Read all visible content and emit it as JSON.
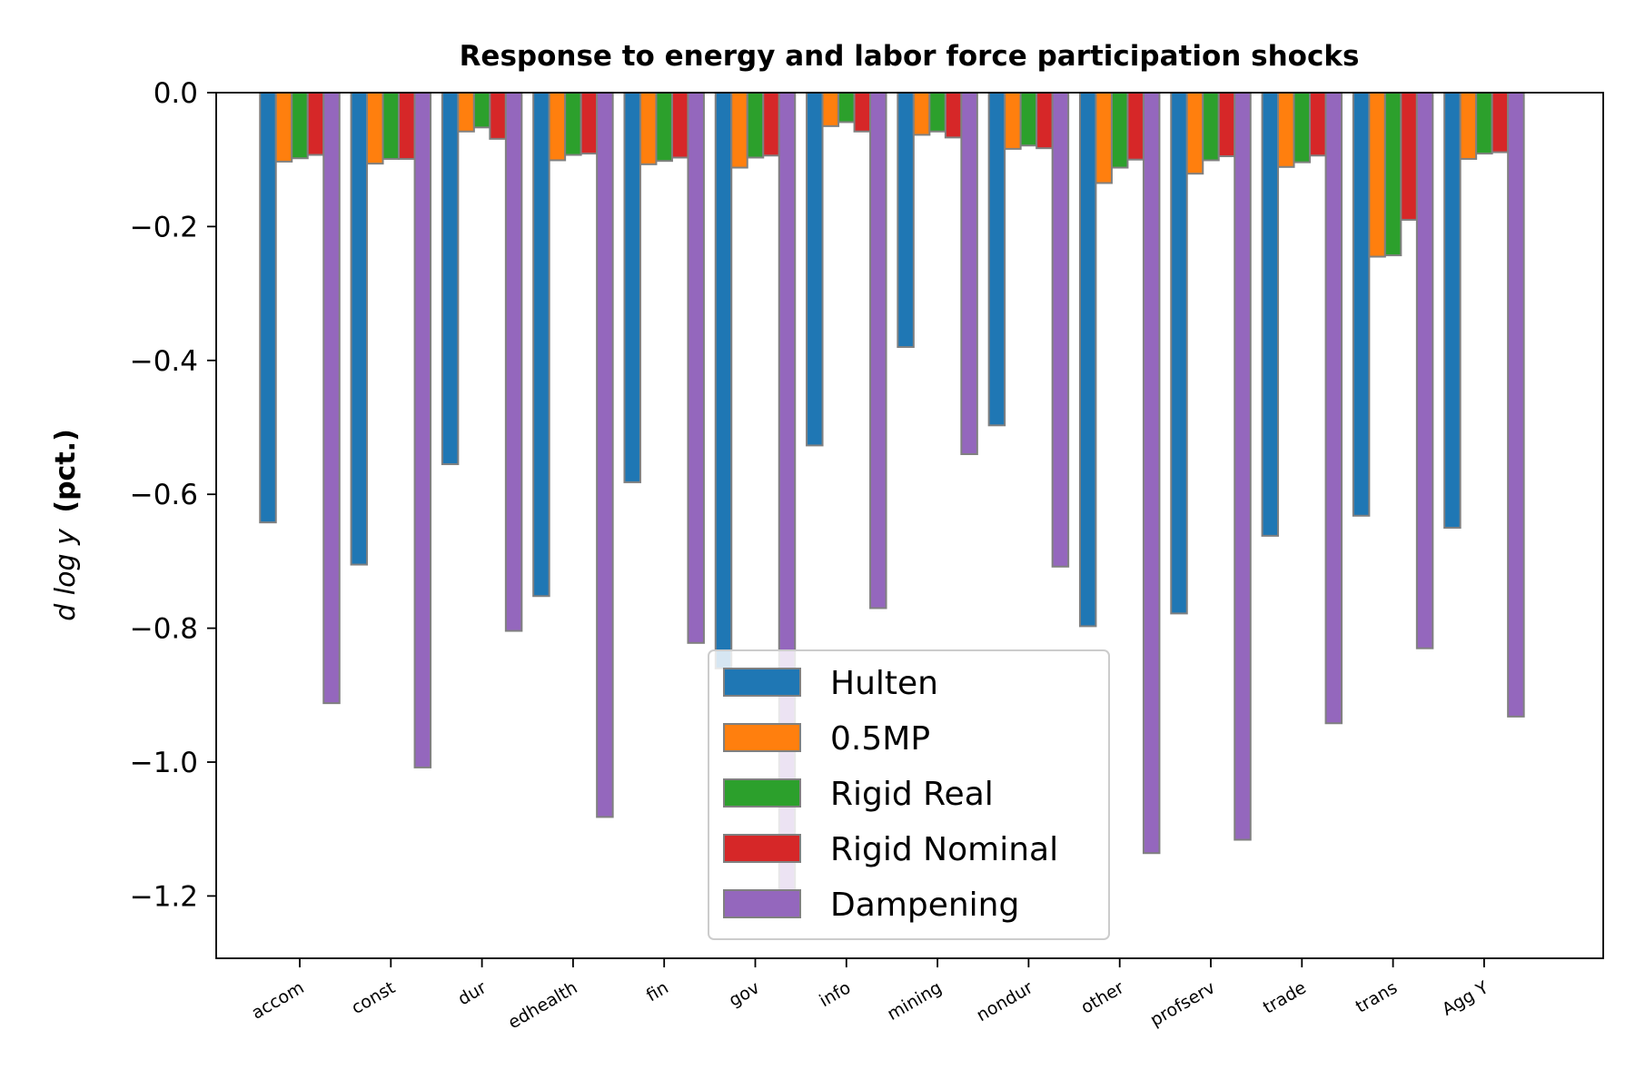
{
  "chart_data": {
    "type": "bar",
    "title": "Response to energy and labor force participation shocks",
    "ylabel_italic": "d log y",
    "ylabel_bold": "(pct.)",
    "xlabel": "",
    "ylim": [
      -1.3,
      0.0
    ],
    "yticks": [
      0.0,
      -0.2,
      -0.4,
      -0.6,
      -0.8,
      -1.0,
      -1.2
    ],
    "ytick_labels": [
      "0.0",
      "−0.2",
      "−0.4",
      "−0.6",
      "−0.8",
      "−1.0",
      "−1.2"
    ],
    "categories": [
      "accom",
      "const",
      "dur",
      "edhealth",
      "fin",
      "gov",
      "info",
      "mining",
      "nondur",
      "other",
      "profserv",
      "trade",
      "trans",
      "Agg Y"
    ],
    "series": [
      {
        "name": "Hulten",
        "color": "#1f77b4",
        "values": [
          -0.642,
          -0.705,
          -0.555,
          -0.752,
          -0.582,
          -0.86,
          -0.527,
          -0.38,
          -0.497,
          -0.797,
          -0.778,
          -0.662,
          -0.632,
          -0.65
        ]
      },
      {
        "name": "0.5MP",
        "color": "#ff7f0e",
        "values": [
          -0.103,
          -0.106,
          -0.058,
          -0.101,
          -0.107,
          -0.112,
          -0.05,
          -0.063,
          -0.084,
          -0.135,
          -0.121,
          -0.111,
          -0.245,
          -0.099
        ]
      },
      {
        "name": "Rigid Real",
        "color": "#2ca02c",
        "values": [
          -0.098,
          -0.099,
          -0.052,
          -0.093,
          -0.102,
          -0.097,
          -0.044,
          -0.058,
          -0.079,
          -0.112,
          -0.101,
          -0.104,
          -0.243,
          -0.091
        ]
      },
      {
        "name": "Rigid Nominal",
        "color": "#d62728",
        "values": [
          -0.093,
          -0.099,
          -0.069,
          -0.091,
          -0.097,
          -0.094,
          -0.058,
          -0.067,
          -0.083,
          -0.1,
          -0.095,
          -0.094,
          -0.19,
          -0.089
        ]
      },
      {
        "name": "Dampening",
        "color": "#9467bd",
        "values": [
          -0.912,
          -1.008,
          -0.804,
          -1.082,
          -0.822,
          -1.232,
          -0.77,
          -0.54,
          -0.708,
          -1.136,
          -1.116,
          -0.942,
          -0.83,
          -0.932
        ]
      }
    ],
    "bar_edge_color": "#808080",
    "grid": false,
    "legend_position": "lower center"
  }
}
